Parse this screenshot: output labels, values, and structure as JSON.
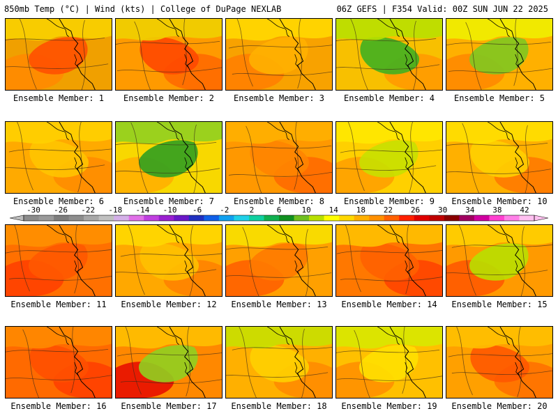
{
  "header": {
    "left": "850mb Temp (°C) | Wind (kts) | College of DuPage NEXLAB",
    "right": "06Z GEFS | F354 Valid: 00Z SUN JUN 22 2025"
  },
  "colorbar": {
    "labels": [
      "-30",
      "-26",
      "-22",
      "-18",
      "-14",
      "-10",
      "-6",
      "-2",
      "2",
      "6",
      "10",
      "14",
      "18",
      "22",
      "26",
      "30",
      "34",
      "38",
      "42"
    ],
    "colors": [
      "#8c8c8c",
      "#9a9a9a",
      "#7e7e7e",
      "#8e8e8e",
      "#a8a8a8",
      "#c0c0c0",
      "#d4b0e8",
      "#e070e8",
      "#c040e0",
      "#9a20d0",
      "#6a18c8",
      "#2030c0",
      "#1060e8",
      "#10a0f0",
      "#20d0e8",
      "#10d0a0",
      "#10b050",
      "#109020",
      "#70c020",
      "#b8e000",
      "#ffff00",
      "#ffd800",
      "#ffb000",
      "#ff9000",
      "#ff6000",
      "#ff2000",
      "#e00000",
      "#c00000",
      "#8a0000",
      "#a00060",
      "#d000a0",
      "#ff40d0",
      "#ff80e8",
      "#ffc0f0"
    ]
  },
  "members": [
    {
      "label": "Ensemble Member: 1",
      "base": "#f0a000",
      "overlays": [
        {
          "color": "#ff8a00"
        },
        {
          "color": "#ff5000"
        },
        {
          "color": "#f8d000"
        }
      ]
    },
    {
      "label": "Ensemble Member: 2",
      "base": "#ff9a00",
      "overlays": [
        {
          "color": "#ff6a00"
        },
        {
          "color": "#ff4800"
        },
        {
          "color": "#f0d000"
        }
      ]
    },
    {
      "label": "Ensemble Member: 3",
      "base": "#f8a200",
      "overlays": [
        {
          "color": "#ff8000"
        },
        {
          "color": "#ffb000"
        },
        {
          "color": "#ffd800"
        }
      ]
    },
    {
      "label": "Ensemble Member: 4",
      "base": "#f8c000",
      "overlays": [
        {
          "color": "#ff9a00"
        },
        {
          "color": "#40b020"
        },
        {
          "color": "#b8e000"
        }
      ]
    },
    {
      "label": "Ensemble Member: 5",
      "base": "#ffb000",
      "overlays": [
        {
          "color": "#ff8a00"
        },
        {
          "color": "#80c820"
        },
        {
          "color": "#f0f000"
        }
      ]
    },
    {
      "label": "Ensemble Member: 6",
      "base": "#ffaa00",
      "overlays": [
        {
          "color": "#ff8c00"
        },
        {
          "color": "#ffc400"
        },
        {
          "color": "#ffd000"
        }
      ]
    },
    {
      "label": "Ensemble Member: 7",
      "base": "#f8d800",
      "overlays": [
        {
          "color": "#ffb000"
        },
        {
          "color": "#30a020"
        },
        {
          "color": "#90d020"
        }
      ]
    },
    {
      "label": "Ensemble Member: 8",
      "base": "#ff9800",
      "overlays": [
        {
          "color": "#ff6a00"
        },
        {
          "color": "#ff8400"
        },
        {
          "color": "#ffb000"
        }
      ]
    },
    {
      "label": "Ensemble Member: 9",
      "base": "#ffd000",
      "overlays": [
        {
          "color": "#ffa000"
        },
        {
          "color": "#c8e000"
        },
        {
          "color": "#ffe800"
        }
      ]
    },
    {
      "label": "Ensemble Member: 10",
      "base": "#ffb000",
      "overlays": [
        {
          "color": "#ff7a00"
        },
        {
          "color": "#ffd000"
        },
        {
          "color": "#ffe000"
        }
      ]
    },
    {
      "label": "Ensemble Member: 11",
      "base": "#ff7000",
      "overlays": [
        {
          "color": "#ff4000"
        },
        {
          "color": "#ff5800"
        },
        {
          "color": "#ff9000"
        }
      ]
    },
    {
      "label": "Ensemble Member: 12",
      "base": "#ffa800",
      "overlays": [
        {
          "color": "#ff8200"
        },
        {
          "color": "#ffc000"
        },
        {
          "color": "#ffd800"
        }
      ]
    },
    {
      "label": "Ensemble Member: 13",
      "base": "#ffa000",
      "overlays": [
        {
          "color": "#ff6000"
        },
        {
          "color": "#ff7a00"
        },
        {
          "color": "#f8e000"
        }
      ]
    },
    {
      "label": "Ensemble Member: 14",
      "base": "#ff7800",
      "overlays": [
        {
          "color": "#ff4400"
        },
        {
          "color": "#ff6000"
        },
        {
          "color": "#ffc000"
        }
      ]
    },
    {
      "label": "Ensemble Member: 15",
      "base": "#ff9a00",
      "overlays": [
        {
          "color": "#ff5a00"
        },
        {
          "color": "#b8e000"
        },
        {
          "color": "#ffd000"
        }
      ]
    },
    {
      "label": "Ensemble Member: 16",
      "base": "#ff6a00",
      "overlays": [
        {
          "color": "#ff4000"
        },
        {
          "color": "#ff5000"
        },
        {
          "color": "#ff8a00"
        }
      ]
    },
    {
      "label": "Ensemble Member: 17",
      "base": "#ff8800",
      "overlays": [
        {
          "color": "#e81000"
        },
        {
          "color": "#90d020"
        },
        {
          "color": "#ffc000"
        }
      ]
    },
    {
      "label": "Ensemble Member: 18",
      "base": "#ffb000",
      "overlays": [
        {
          "color": "#ff8c00"
        },
        {
          "color": "#ffd000"
        },
        {
          "color": "#c8e000"
        }
      ]
    },
    {
      "label": "Ensemble Member: 19",
      "base": "#ffc000",
      "overlays": [
        {
          "color": "#ff9000"
        },
        {
          "color": "#ffe000"
        },
        {
          "color": "#d8e800"
        }
      ]
    },
    {
      "label": "Ensemble Member: 20",
      "base": "#ffa000",
      "overlays": [
        {
          "color": "#ff7000"
        },
        {
          "color": "#ff5800"
        },
        {
          "color": "#ffc000"
        }
      ]
    }
  ]
}
